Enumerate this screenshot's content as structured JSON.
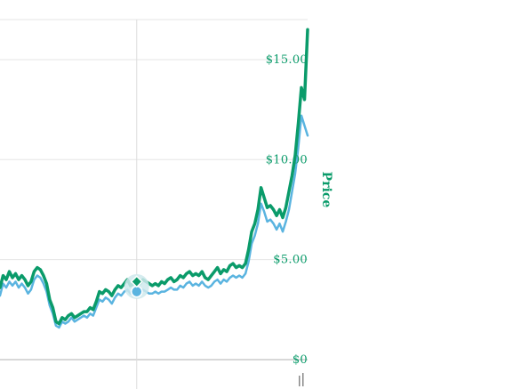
{
  "chart_data": {
    "type": "line",
    "title": "",
    "xlabel": "",
    "ylabel": "Price",
    "ylim": [
      0,
      17
    ],
    "yticks": [
      {
        "value": 0,
        "label": "$0"
      },
      {
        "value": 5,
        "label": "$5.00"
      },
      {
        "value": 10,
        "label": "$10.00"
      },
      {
        "value": 15,
        "label": "$15.00"
      }
    ],
    "grid": true,
    "legend": "none",
    "colors": {
      "primary": "#0a9b6a",
      "secondary": "#5ab4e0",
      "grid": "#e6e6e6",
      "tick_text": "#0a9b6a",
      "marker_halo": "#cfe9ec"
    },
    "hover": {
      "x": 44,
      "y_primary": 3.9,
      "y_secondary": 3.4
    },
    "series": [
      {
        "color": "#0a9b6a",
        "values": [
          [
            0,
            3.6
          ],
          [
            1,
            4.2
          ],
          [
            2,
            4.0
          ],
          [
            3,
            4.4
          ],
          [
            4,
            4.1
          ],
          [
            5,
            4.3
          ],
          [
            6,
            4.0
          ],
          [
            7,
            4.2
          ],
          [
            8,
            4.0
          ],
          [
            9,
            3.7
          ],
          [
            10,
            3.9
          ],
          [
            11,
            4.4
          ],
          [
            12,
            4.6
          ],
          [
            13,
            4.5
          ],
          [
            14,
            4.2
          ],
          [
            15,
            3.8
          ],
          [
            16,
            3.0
          ],
          [
            17,
            2.6
          ],
          [
            18,
            1.9
          ],
          [
            19,
            1.8
          ],
          [
            20,
            2.1
          ],
          [
            21,
            2.0
          ],
          [
            22,
            2.2
          ],
          [
            23,
            2.3
          ],
          [
            24,
            2.1
          ],
          [
            25,
            2.2
          ],
          [
            26,
            2.3
          ],
          [
            27,
            2.4
          ],
          [
            28,
            2.4
          ],
          [
            29,
            2.6
          ],
          [
            30,
            2.5
          ],
          [
            31,
            2.9
          ],
          [
            32,
            3.4
          ],
          [
            33,
            3.3
          ],
          [
            34,
            3.5
          ],
          [
            35,
            3.4
          ],
          [
            36,
            3.2
          ],
          [
            37,
            3.5
          ],
          [
            38,
            3.7
          ],
          [
            39,
            3.6
          ],
          [
            40,
            3.8
          ],
          [
            41,
            4.0
          ],
          [
            42,
            3.7
          ],
          [
            43,
            3.8
          ],
          [
            44,
            3.9
          ],
          [
            45,
            3.8
          ],
          [
            46,
            4.0
          ],
          [
            47,
            3.9
          ],
          [
            48,
            3.8
          ],
          [
            49,
            3.7
          ],
          [
            50,
            3.8
          ],
          [
            51,
            3.7
          ],
          [
            52,
            3.9
          ],
          [
            53,
            3.8
          ],
          [
            54,
            4.0
          ],
          [
            55,
            4.1
          ],
          [
            56,
            3.9
          ],
          [
            57,
            4.0
          ],
          [
            58,
            4.2
          ],
          [
            59,
            4.1
          ],
          [
            60,
            4.3
          ],
          [
            61,
            4.4
          ],
          [
            62,
            4.2
          ],
          [
            63,
            4.3
          ],
          [
            64,
            4.2
          ],
          [
            65,
            4.4
          ],
          [
            66,
            4.1
          ],
          [
            67,
            4.0
          ],
          [
            68,
            4.2
          ],
          [
            69,
            4.4
          ],
          [
            70,
            4.6
          ],
          [
            71,
            4.3
          ],
          [
            72,
            4.5
          ],
          [
            73,
            4.4
          ],
          [
            74,
            4.7
          ],
          [
            75,
            4.8
          ],
          [
            76,
            4.6
          ],
          [
            77,
            4.7
          ],
          [
            78,
            4.6
          ],
          [
            79,
            4.8
          ],
          [
            80,
            5.5
          ],
          [
            81,
            6.4
          ],
          [
            82,
            6.8
          ],
          [
            83,
            7.5
          ],
          [
            84,
            8.6
          ],
          [
            85,
            8.1
          ],
          [
            86,
            7.6
          ],
          [
            87,
            7.7
          ],
          [
            88,
            7.5
          ],
          [
            89,
            7.2
          ],
          [
            90,
            7.5
          ],
          [
            91,
            7.1
          ],
          [
            92,
            7.6
          ],
          [
            93,
            8.4
          ],
          [
            94,
            9.2
          ],
          [
            95,
            10.2
          ],
          [
            96,
            11.8
          ],
          [
            97,
            13.6
          ],
          [
            98,
            13.0
          ],
          [
            99,
            16.5
          ]
        ]
      },
      {
        "color": "#5ab4e0",
        "values": [
          [
            0,
            3.2
          ],
          [
            1,
            3.8
          ],
          [
            2,
            3.6
          ],
          [
            3,
            3.9
          ],
          [
            4,
            3.7
          ],
          [
            5,
            3.9
          ],
          [
            6,
            3.6
          ],
          [
            7,
            3.8
          ],
          [
            8,
            3.6
          ],
          [
            9,
            3.3
          ],
          [
            10,
            3.5
          ],
          [
            11,
            4.0
          ],
          [
            12,
            4.2
          ],
          [
            13,
            4.1
          ],
          [
            14,
            3.8
          ],
          [
            15,
            3.4
          ],
          [
            16,
            2.7
          ],
          [
            17,
            2.3
          ],
          [
            18,
            1.7
          ],
          [
            19,
            1.6
          ],
          [
            20,
            1.9
          ],
          [
            21,
            1.8
          ],
          [
            22,
            1.9
          ],
          [
            23,
            2.1
          ],
          [
            24,
            1.9
          ],
          [
            25,
            2.0
          ],
          [
            26,
            2.1
          ],
          [
            27,
            2.2
          ],
          [
            28,
            2.1
          ],
          [
            29,
            2.3
          ],
          [
            30,
            2.2
          ],
          [
            31,
            2.6
          ],
          [
            32,
            3.0
          ],
          [
            33,
            2.9
          ],
          [
            34,
            3.1
          ],
          [
            35,
            3.0
          ],
          [
            36,
            2.8
          ],
          [
            37,
            3.1
          ],
          [
            38,
            3.3
          ],
          [
            39,
            3.2
          ],
          [
            40,
            3.4
          ],
          [
            41,
            3.5
          ],
          [
            42,
            3.3
          ],
          [
            43,
            3.3
          ],
          [
            44,
            3.4
          ],
          [
            45,
            3.3
          ],
          [
            46,
            3.5
          ],
          [
            47,
            3.4
          ],
          [
            48,
            3.3
          ],
          [
            49,
            3.3
          ],
          [
            50,
            3.4
          ],
          [
            51,
            3.3
          ],
          [
            52,
            3.4
          ],
          [
            53,
            3.4
          ],
          [
            54,
            3.5
          ],
          [
            55,
            3.6
          ],
          [
            56,
            3.5
          ],
          [
            57,
            3.5
          ],
          [
            58,
            3.7
          ],
          [
            59,
            3.6
          ],
          [
            60,
            3.8
          ],
          [
            61,
            3.9
          ],
          [
            62,
            3.7
          ],
          [
            63,
            3.8
          ],
          [
            64,
            3.7
          ],
          [
            65,
            3.9
          ],
          [
            66,
            3.7
          ],
          [
            67,
            3.6
          ],
          [
            68,
            3.7
          ],
          [
            69,
            3.9
          ],
          [
            70,
            4.0
          ],
          [
            71,
            3.8
          ],
          [
            72,
            4.0
          ],
          [
            73,
            3.9
          ],
          [
            74,
            4.1
          ],
          [
            75,
            4.2
          ],
          [
            76,
            4.1
          ],
          [
            77,
            4.2
          ],
          [
            78,
            4.1
          ],
          [
            79,
            4.3
          ],
          [
            80,
            4.9
          ],
          [
            81,
            5.8
          ],
          [
            82,
            6.2
          ],
          [
            83,
            6.8
          ],
          [
            84,
            7.8
          ],
          [
            85,
            7.4
          ],
          [
            86,
            6.9
          ],
          [
            87,
            7.0
          ],
          [
            88,
            6.8
          ],
          [
            89,
            6.5
          ],
          [
            90,
            6.8
          ],
          [
            91,
            6.4
          ],
          [
            92,
            6.9
          ],
          [
            93,
            7.5
          ],
          [
            94,
            8.4
          ],
          [
            95,
            9.3
          ],
          [
            96,
            10.6
          ],
          [
            97,
            12.2
          ],
          [
            98,
            11.7
          ],
          [
            99,
            11.2
          ]
        ]
      }
    ]
  }
}
